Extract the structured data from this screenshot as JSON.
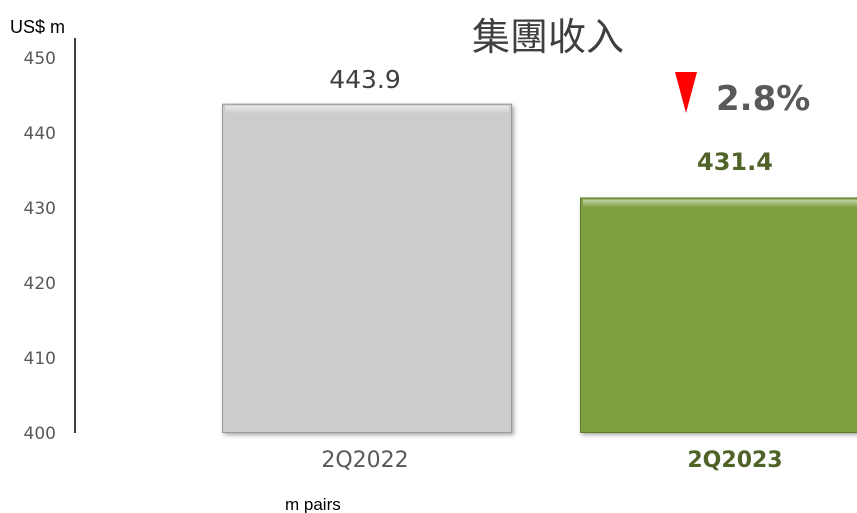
{
  "chart_data": {
    "type": "bar",
    "title": "集團收入",
    "unit_label": "US$ m",
    "ylim": [
      400,
      450
    ],
    "yticks": [
      400,
      410,
      420,
      430,
      440,
      450
    ],
    "categories": [
      "2Q2022",
      "2Q2023"
    ],
    "values": [
      443.9,
      431.4
    ],
    "value_labels": [
      "443.9",
      "431.4"
    ],
    "bar_colors": [
      "#cccccc",
      "#7e9e3f"
    ],
    "highlight_color": "#4f6228",
    "change": {
      "direction": "down",
      "label": "2.8%",
      "color": "#ff0000"
    },
    "footnote": "m pairs",
    "grid": false
  }
}
